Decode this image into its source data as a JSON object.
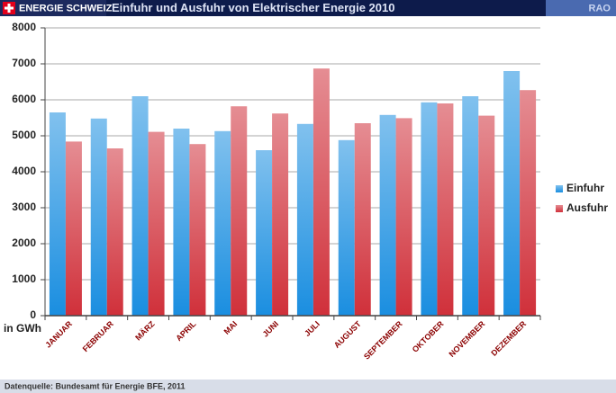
{
  "header": {
    "brand": "ENERGIE SCHWEIZ",
    "badge": "RAO"
  },
  "footer": {
    "source": "Datenquelle: Bundesamt für Energie BFE, 2011"
  },
  "chart_data": {
    "type": "bar",
    "title": "Einfuhr und Ausfuhr von Elektrischer Energie 2010",
    "ylabel": "in GWh",
    "categories": [
      "JANUAR",
      "FEBRUAR",
      "MÄRZ",
      "APRIL",
      "MAI",
      "JUNI",
      "JULI",
      "AUGUST",
      "SEPTEMBER",
      "OKTOBER",
      "NOVEMBER",
      "DEZEMBER"
    ],
    "series": [
      {
        "name": "Einfuhr",
        "color": "#1a8ee0",
        "values": [
          5650,
          5480,
          6100,
          5200,
          5130,
          4600,
          5330,
          4880,
          5580,
          5930,
          6100,
          6800
        ]
      },
      {
        "name": "Ausfuhr",
        "color": "#d0303a",
        "values": [
          4840,
          4650,
          5110,
          4770,
          5820,
          5620,
          6870,
          5350,
          5490,
          5900,
          5560,
          6270
        ]
      }
    ],
    "ylim": [
      0,
      8000
    ],
    "yticks": [
      0,
      1000,
      2000,
      3000,
      4000,
      5000,
      6000,
      7000,
      8000
    ],
    "grid": true,
    "legend": "right"
  }
}
